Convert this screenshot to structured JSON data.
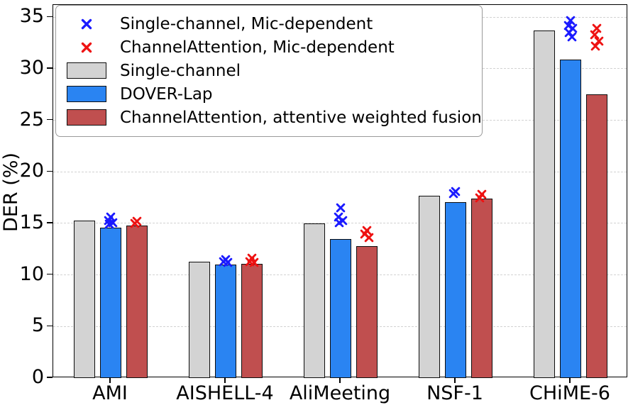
{
  "chart_data": {
    "type": "bar",
    "title": "",
    "xlabel": "",
    "ylabel": "DER (%)",
    "ylim": [
      0,
      36.2
    ],
    "yticks": [
      0,
      5,
      10,
      15,
      20,
      25,
      30,
      35
    ],
    "grid": "horizontal-dashed",
    "legend_position": "upper-left",
    "categories": [
      "AMI",
      "AISHELL-4",
      "AliMeeting",
      "NSF-1",
      "CHiME-6"
    ],
    "series": [
      {
        "name": "Single-channel",
        "type": "bar",
        "color": "#d3d3d3",
        "values": [
          15.3,
          11.3,
          15.0,
          17.7,
          33.7
        ]
      },
      {
        "name": "DOVER-Lap",
        "type": "bar",
        "color": "#2a84f2",
        "values": [
          14.6,
          11.0,
          13.5,
          17.1,
          30.9
        ]
      },
      {
        "name": "ChannelAttention, attentive weighted fusion",
        "type": "bar",
        "color": "#c04f4f",
        "values": [
          14.8,
          11.1,
          12.8,
          17.4,
          27.5
        ]
      },
      {
        "name": "Single-channel, Mic-dependent",
        "type": "scatter-x",
        "color": "#1a1aff",
        "align_with_bar": 1,
        "points": [
          [
            15.6,
            15.3,
            15.1,
            14.9
          ],
          [
            11.5,
            11.3,
            11.2
          ],
          [
            16.5,
            15.6,
            15.3,
            15.1
          ],
          [
            18.1,
            17.9
          ],
          [
            34.7,
            34.2,
            33.9,
            33.5,
            33.1
          ]
        ]
      },
      {
        "name": "ChannelAttention, Mic-dependent",
        "type": "scatter-x",
        "color": "#ee1111",
        "align_with_bar": 2,
        "points": [
          [
            15.2,
            15.0
          ],
          [
            11.6,
            11.3,
            11.2
          ],
          [
            14.3,
            14.0,
            13.6
          ],
          [
            17.8,
            17.5
          ],
          [
            33.9,
            33.3,
            32.7,
            32.2
          ]
        ]
      }
    ],
    "legend": [
      {
        "symbol": "x",
        "color": "#1a1aff",
        "label": "Single-channel, Mic-dependent"
      },
      {
        "symbol": "x",
        "color": "#ee1111",
        "label": "ChannelAttention, Mic-dependent"
      },
      {
        "symbol": "patch",
        "color": "#d3d3d3",
        "label": "Single-channel"
      },
      {
        "symbol": "patch",
        "color": "#2a84f2",
        "label": "DOVER-Lap"
      },
      {
        "symbol": "patch",
        "color": "#c04f4f",
        "label": "ChannelAttention, attentive weighted fusion"
      }
    ]
  }
}
